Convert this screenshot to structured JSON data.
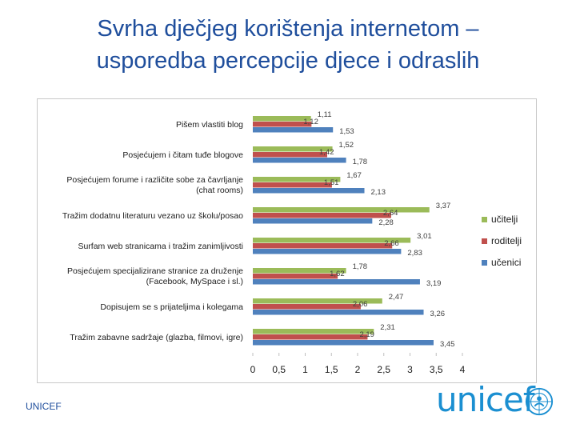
{
  "title_line1": "Svrha dječjeg korištenja internetom –",
  "title_line2": "usporedba percepcije djece i odraslih",
  "footer_left": "UNICEF",
  "logo_text": "unicef",
  "colors": {
    "ucitelji": "#9bbb59",
    "roditelji": "#c0504d",
    "ucenici": "#4f81bd",
    "title": "#1f4e9c"
  },
  "chart_data": {
    "type": "bar",
    "orientation": "horizontal",
    "categories": [
      "Pišem vlastiti blog",
      "Posjećujem i čitam tuđe blogove",
      "Posjećujem forume i različite sobe za čavrljanje (chat rooms)",
      "Tražim dodatnu literaturu vezano uz školu/posao",
      "Surfam web stranicama i tražim zanimljivosti",
      "Posjećujem specijalizirane stranice za druženje (Facebook, MySpace i sl.)",
      "Dopisujem se s prijateljima i kolegama",
      "Tražim zabavne sadržaje (glazba, filmovi, igre)"
    ],
    "category_lines": [
      [
        "Pišem vlastiti blog"
      ],
      [
        "Posjećujem i čitam tuđe blogove"
      ],
      [
        "Posjećujem forume i različite sobe za čavrljanje",
        "(chat rooms)"
      ],
      [
        "Tražim dodatnu literaturu vezano uz školu/posao"
      ],
      [
        "Surfam web stranicama i tražim zanimljivosti"
      ],
      [
        "Posjećujem specijalizirane stranice za druženje",
        "(Facebook, MySpace i sl.)"
      ],
      [
        "Dopisujem se s prijateljima i kolegama"
      ],
      [
        "Tražim zabavne sadržaje (glazba, filmovi, igre)"
      ]
    ],
    "series": [
      {
        "name": "učitelji",
        "values": [
          1.11,
          1.52,
          1.67,
          3.37,
          3.01,
          1.78,
          2.47,
          2.31
        ],
        "labels": [
          "1,11",
          "1,52",
          "1,67",
          "3,37",
          "3,01",
          "1,78",
          "2,47",
          "2,31"
        ]
      },
      {
        "name": "roditelji",
        "values": [
          1.12,
          1.42,
          1.51,
          2.64,
          2.66,
          1.62,
          2.06,
          2.19
        ],
        "labels": [
          "1,12",
          "1,42",
          "1,51",
          "2,64",
          "2,66",
          "1,62",
          "2,06",
          "2,19"
        ]
      },
      {
        "name": "učenici",
        "values": [
          1.53,
          1.78,
          2.13,
          2.28,
          2.83,
          3.19,
          3.26,
          3.45
        ],
        "labels": [
          "1,53",
          "1,78",
          "2,13",
          "2,28",
          "2,83",
          "3,19",
          "3,26",
          "3,45"
        ]
      }
    ],
    "xticks": [
      0,
      0.5,
      1,
      1.5,
      2,
      2.5,
      3,
      3.5,
      4
    ],
    "xtick_labels": [
      "0",
      "0,5",
      "1",
      "1,5",
      "2",
      "2,5",
      "3",
      "3,5",
      "4"
    ],
    "xlim": [
      0,
      4
    ],
    "legend_position": "right",
    "grid": false
  }
}
